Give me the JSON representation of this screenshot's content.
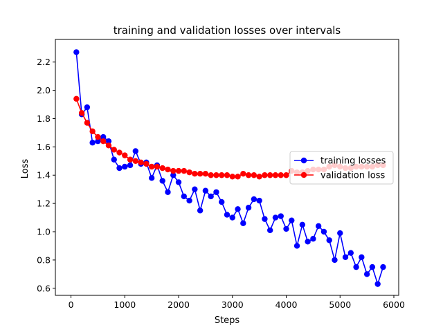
{
  "chart_data": {
    "type": "line",
    "title": "training and validation losses over intervals",
    "xlabel": "Steps",
    "ylabel": "Loss",
    "xlim": [
      -290,
      6090
    ],
    "ylim": [
      0.55,
      2.36
    ],
    "xticks": [
      0,
      1000,
      2000,
      3000,
      4000,
      5000,
      6000
    ],
    "xtick_labels": [
      "0",
      "1000",
      "2000",
      "3000",
      "4000",
      "5000",
      "6000"
    ],
    "yticks": [
      0.6,
      0.8,
      1.0,
      1.2,
      1.4,
      1.6,
      1.8,
      2.0,
      2.2
    ],
    "ytick_labels": [
      "0.6",
      "0.8",
      "1.0",
      "1.2",
      "1.4",
      "1.6",
      "1.8",
      "2.0",
      "2.2"
    ],
    "grid": false,
    "legend_position": "center-right",
    "x": [
      100,
      200,
      300,
      400,
      500,
      600,
      700,
      800,
      900,
      1000,
      1100,
      1200,
      1300,
      1400,
      1500,
      1600,
      1700,
      1800,
      1900,
      2000,
      2100,
      2200,
      2300,
      2400,
      2500,
      2600,
      2700,
      2800,
      2900,
      3000,
      3100,
      3200,
      3300,
      3400,
      3500,
      3600,
      3700,
      3800,
      3900,
      4000,
      4100,
      4200,
      4300,
      4400,
      4500,
      4600,
      4700,
      4800,
      4900,
      5000,
      5100,
      5200,
      5300,
      5400,
      5500,
      5600,
      5700,
      5800
    ],
    "series": [
      {
        "name": "training losses",
        "color": "#0000ff",
        "values": [
          2.27,
          1.83,
          1.88,
          1.63,
          1.64,
          1.67,
          1.64,
          1.51,
          1.45,
          1.46,
          1.47,
          1.57,
          1.48,
          1.49,
          1.38,
          1.47,
          1.36,
          1.28,
          1.4,
          1.35,
          1.25,
          1.22,
          1.3,
          1.15,
          1.29,
          1.25,
          1.28,
          1.21,
          1.12,
          1.1,
          1.16,
          1.06,
          1.17,
          1.23,
          1.22,
          1.09,
          1.01,
          1.1,
          1.11,
          1.02,
          1.08,
          0.9,
          1.05,
          0.93,
          0.95,
          1.04,
          1.0,
          0.94,
          0.8,
          0.99,
          0.82,
          0.85,
          0.75,
          0.82,
          0.7,
          0.75,
          0.63,
          0.75
        ]
      },
      {
        "name": "validation loss",
        "color": "#ff0000",
        "values": [
          1.94,
          1.84,
          1.77,
          1.71,
          1.67,
          1.64,
          1.61,
          1.58,
          1.56,
          1.54,
          1.51,
          1.5,
          1.49,
          1.48,
          1.46,
          1.46,
          1.45,
          1.44,
          1.43,
          1.43,
          1.43,
          1.42,
          1.41,
          1.41,
          1.41,
          1.4,
          1.4,
          1.4,
          1.4,
          1.39,
          1.39,
          1.41,
          1.4,
          1.4,
          1.39,
          1.4,
          1.4,
          1.4,
          1.4,
          1.4,
          1.43,
          1.42,
          1.42,
          1.43,
          1.44,
          1.44,
          1.44,
          1.46,
          1.47,
          1.46,
          1.45,
          1.45,
          1.46,
          1.46,
          1.46,
          1.46,
          1.47,
          1.47
        ]
      }
    ]
  }
}
